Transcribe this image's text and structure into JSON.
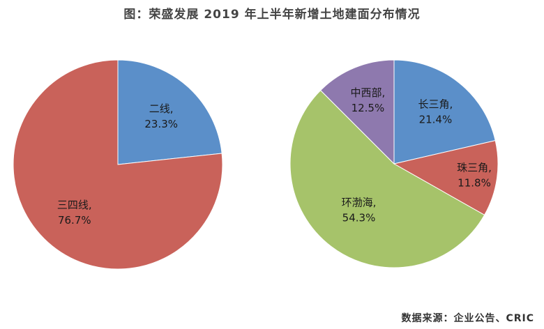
{
  "title": "图：荣盛发展 2019 年上半年新增土地建面分布情况",
  "source": "数据来源：企业公告、CRIC",
  "chart_data": [
    {
      "type": "pie",
      "slices": [
        {
          "label": "二线,",
          "value": 23.3,
          "value_text": "23.3%",
          "color": "#5B8FC9"
        },
        {
          "label": "三四线,",
          "value": 76.7,
          "value_text": "76.7%",
          "color": "#C9625A"
        }
      ]
    },
    {
      "type": "pie",
      "slices": [
        {
          "label": "长三角,",
          "value": 21.4,
          "value_text": "21.4%",
          "color": "#5B8FC9"
        },
        {
          "label": "珠三角,",
          "value": 11.8,
          "value_text": "11.8%",
          "color": "#C9625A"
        },
        {
          "label": "环渤海,",
          "value": 54.3,
          "value_text": "54.3%",
          "color": "#A6C36A"
        },
        {
          "label": "中西部,",
          "value": 12.5,
          "value_text": "12.5%",
          "color": "#8E79AE"
        }
      ]
    }
  ]
}
